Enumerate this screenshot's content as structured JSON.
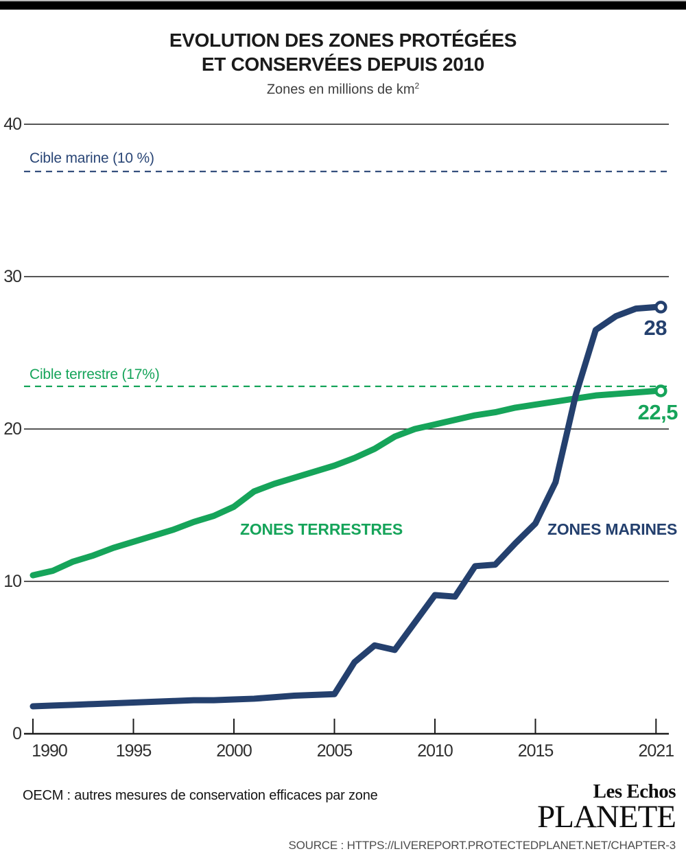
{
  "header": {
    "title_line1": "EVOLUTION  DES ZONES PROTÉGÉES",
    "title_line2": "ET CONSERVÉES DEPUIS 2010",
    "subtitle_text": "Zones en millions de km",
    "subtitle_exponent": "2"
  },
  "chart_data": {
    "type": "line",
    "title": "EVOLUTION DES ZONES PROTÉGÉES ET CONSERVÉES DEPUIS 2010",
    "ylabel": "Zones en millions de km2",
    "ylim": [
      0,
      42
    ],
    "grid": true,
    "x": [
      1990,
      1991,
      1992,
      1993,
      1994,
      1995,
      1996,
      1997,
      1998,
      1999,
      2000,
      2001,
      2002,
      2003,
      2004,
      2005,
      2006,
      2007,
      2008,
      2009,
      2010,
      2011,
      2012,
      2013,
      2014,
      2015,
      2016,
      2017,
      2018,
      2019,
      2020,
      2021
    ],
    "x_ticks": [
      1990,
      1995,
      2000,
      2005,
      2010,
      2015,
      2021
    ],
    "y_ticks": [
      0,
      10,
      20,
      30,
      40
    ],
    "series": [
      {
        "name": "ZONES TERRESTRES",
        "color": "#16a45a",
        "end_label": "22,5",
        "end_value": 22.5,
        "values": [
          10.4,
          10.7,
          11.3,
          11.7,
          12.2,
          12.6,
          13.0,
          13.4,
          13.9,
          14.3,
          14.9,
          15.9,
          16.4,
          16.8,
          17.2,
          17.6,
          18.1,
          18.7,
          19.5,
          20.0,
          20.3,
          20.6,
          20.9,
          21.1,
          21.4,
          21.6,
          21.8,
          22.0,
          22.2,
          22.3,
          22.4,
          22.5
        ]
      },
      {
        "name": "ZONES MARINES",
        "color": "#24406e",
        "end_label": "28",
        "end_value": 28,
        "values": [
          1.8,
          1.85,
          1.9,
          1.95,
          2.0,
          2.05,
          2.1,
          2.15,
          2.2,
          2.2,
          2.25,
          2.3,
          2.4,
          2.5,
          2.55,
          2.6,
          4.7,
          5.8,
          5.5,
          7.3,
          9.1,
          9.0,
          11.0,
          11.1,
          12.5,
          13.8,
          16.5,
          22.2,
          26.5,
          27.4,
          27.9,
          28.0
        ]
      }
    ],
    "targets": [
      {
        "label": "Cible marine (10 %)",
        "value": 36.9,
        "color": "#2a4676"
      },
      {
        "label": "Cible terrestre (17%)",
        "value": 22.8,
        "color": "#16a45a"
      }
    ]
  },
  "footer": {
    "note": "OECM : autres mesures de conservation efficaces par zone",
    "logo_line1": "Les Echos",
    "logo_line2": "PLANETE",
    "source": "SOURCE : HTTPS://LIVEREPORT.PROTECTEDPLANET.NET/CHAPTER-3"
  }
}
